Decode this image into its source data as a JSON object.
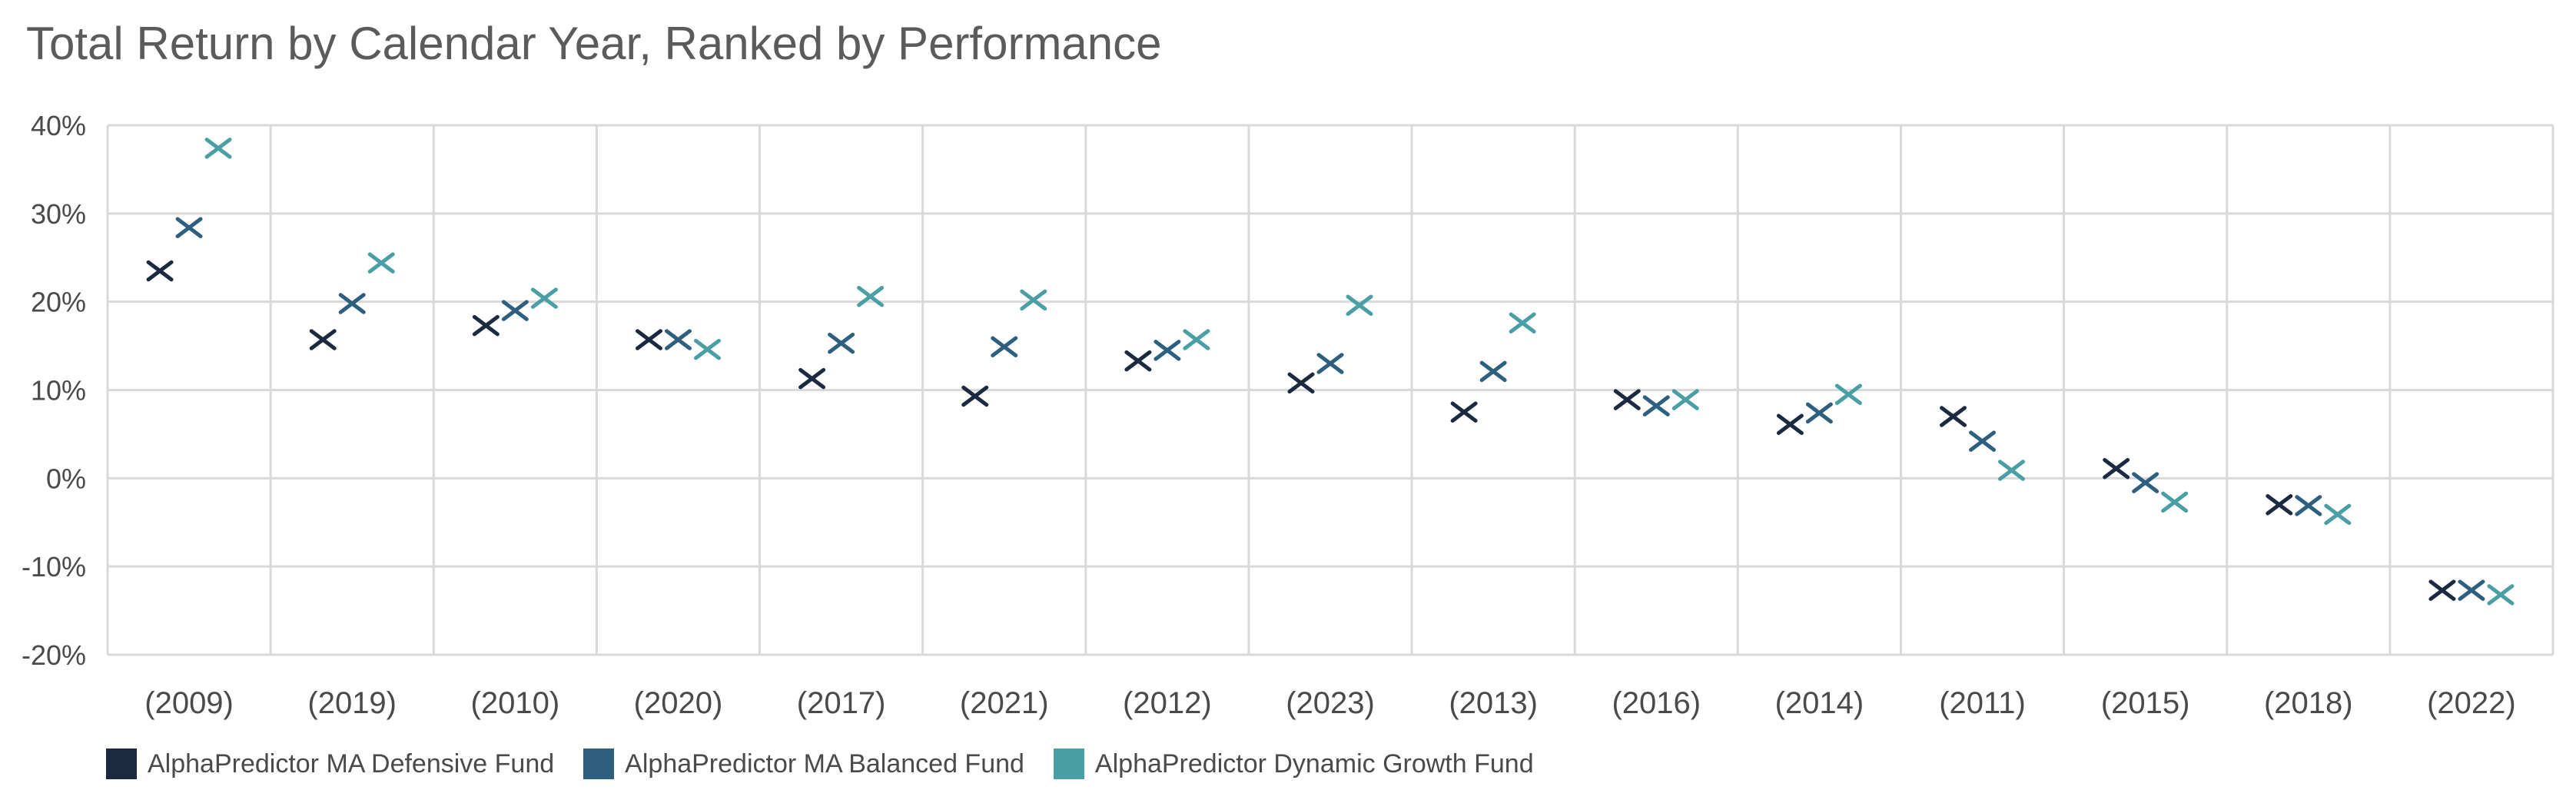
{
  "title": "Total Return by Calendar Year, Ranked by Performance",
  "chart_data": {
    "type": "scatter",
    "title": "Total Return by Calendar Year, Ranked by Performance",
    "categories": [
      "(2009)",
      "(2019)",
      "(2010)",
      "(2020)",
      "(2017)",
      "(2021)",
      "(2012)",
      "(2023)",
      "(2013)",
      "(2016)",
      "(2014)",
      "(2011)",
      "(2015)",
      "(2018)",
      "(2022)"
    ],
    "series": [
      {
        "name": "AlphaPredictor MA Defensive Fund",
        "color": "#1b2a41",
        "values": [
          23.5,
          15.7,
          17.3,
          15.7,
          11.3,
          9.3,
          13.3,
          10.8,
          7.5,
          8.9,
          6.1,
          7.0,
          1.1,
          -3.0,
          -12.7
        ]
      },
      {
        "name": "AlphaPredictor MA Balanced Fund",
        "color": "#2e5f7e",
        "values": [
          28.4,
          19.8,
          19.0,
          15.7,
          15.3,
          14.9,
          14.5,
          13.0,
          12.1,
          8.2,
          7.4,
          4.2,
          -0.5,
          -3.1,
          -12.7
        ]
      },
      {
        "name": "AlphaPredictor Dynamic Growth Fund",
        "color": "#4a9fa4",
        "values": [
          37.4,
          24.4,
          20.4,
          14.6,
          20.6,
          20.2,
          15.7,
          19.6,
          17.6,
          8.9,
          9.5,
          0.9,
          -2.7,
          -4.1,
          -13.2
        ]
      }
    ],
    "ylim": [
      -20,
      40
    ],
    "yticks": [
      40,
      30,
      20,
      10,
      0,
      -10,
      -20
    ],
    "ytick_labels": [
      "40%",
      "30%",
      "20%",
      "10%",
      "0%",
      "-10%",
      "-20%"
    ],
    "marker": "x",
    "grid": true,
    "legend_position": "bottom-left"
  }
}
